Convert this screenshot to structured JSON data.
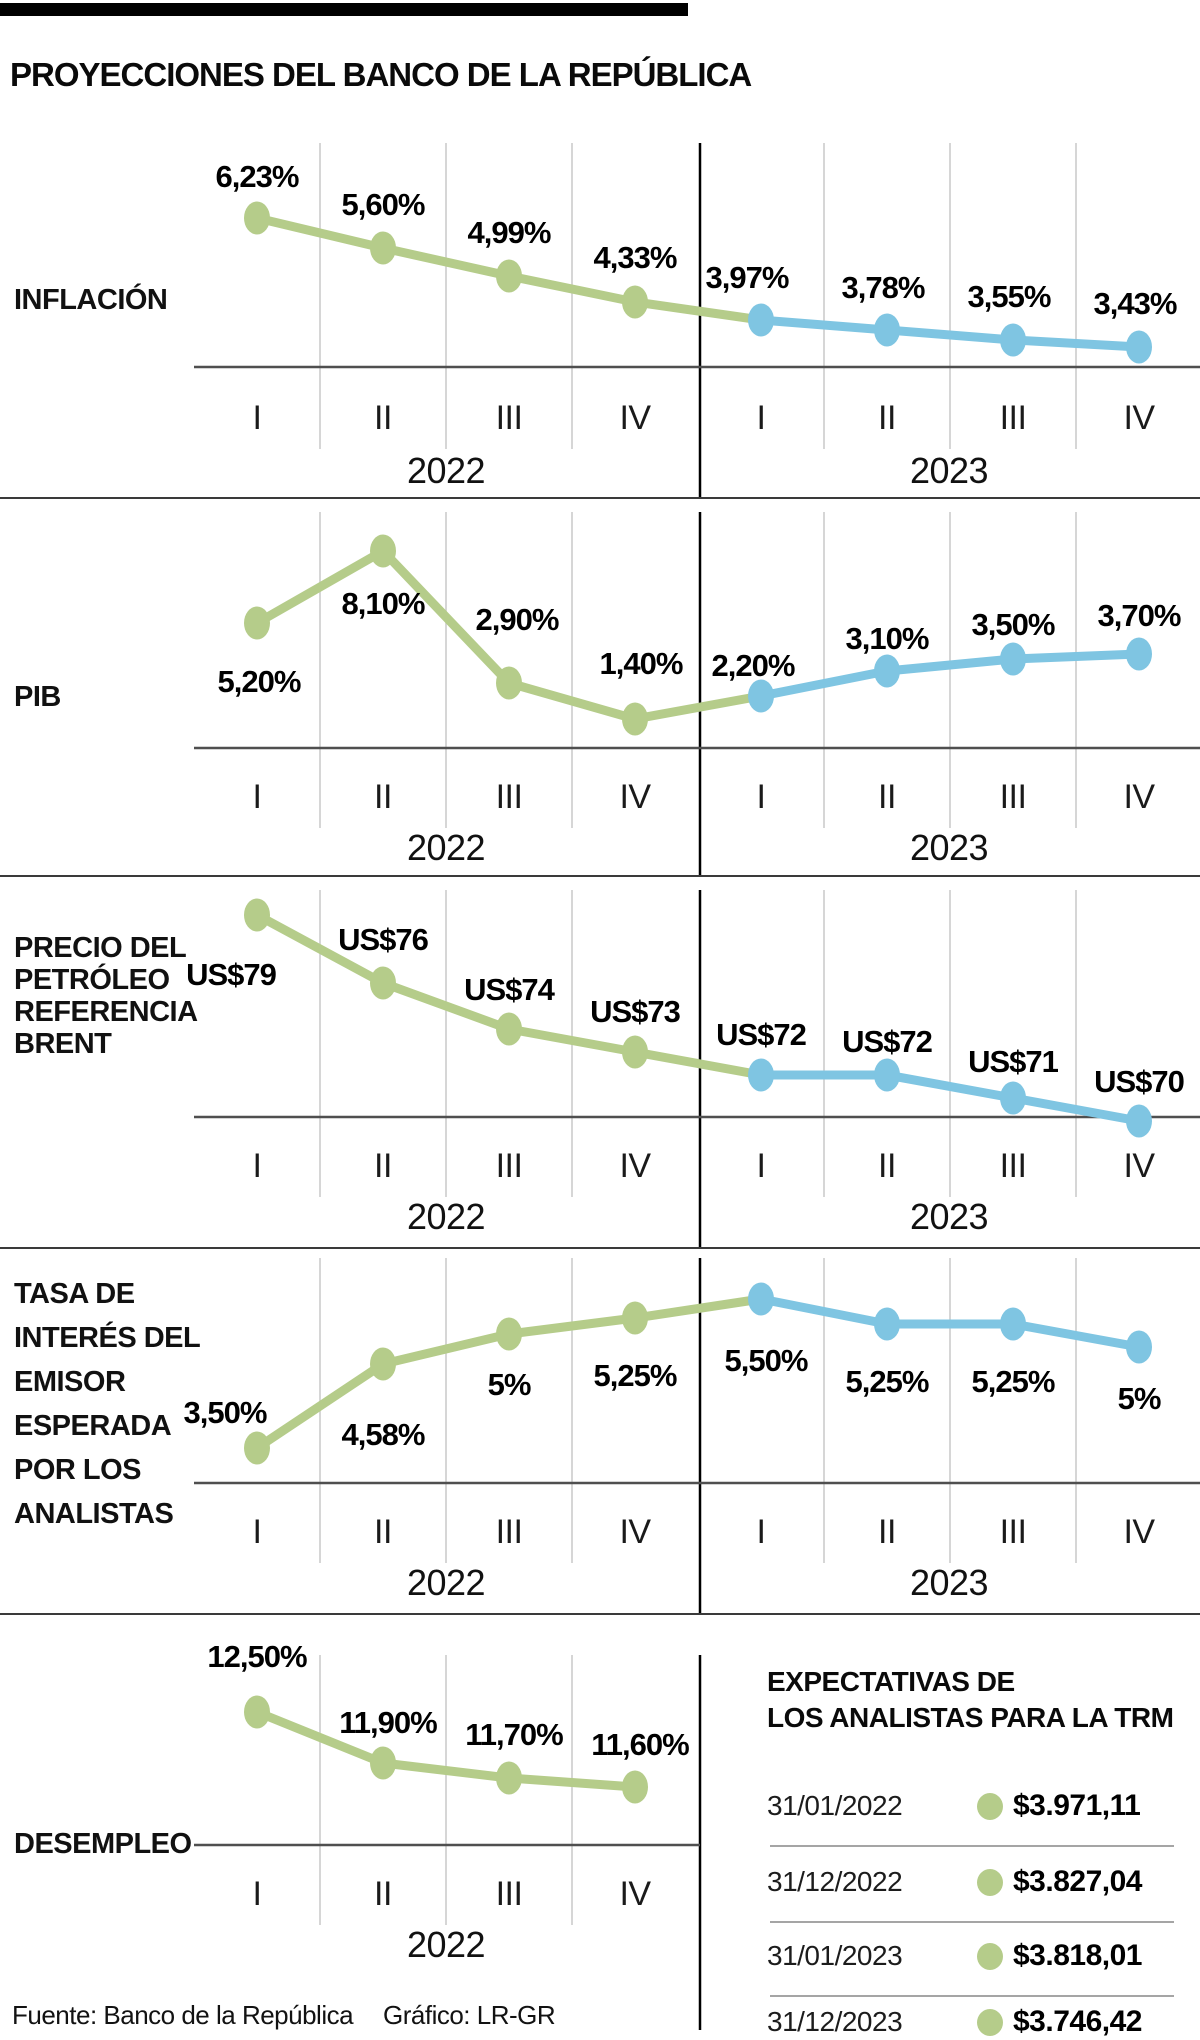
{
  "title": "PROYECCIONES DEL BANCO DE LA REPÚBLICA",
  "colors": {
    "series_2022": "#b5cc8a",
    "series_2023": "#7fc5e2",
    "axis": "#4f4f4f",
    "grid": "#c9c9c9",
    "divider": "#000000",
    "section_rule": "#3a3a3a",
    "trm_rule": "#a5a5a5"
  },
  "chart_data": [
    {
      "type": "line",
      "id": "inflacion",
      "label": "INFLACIÓN",
      "categories": [
        "I 2022",
        "II 2022",
        "III 2022",
        "IV 2022",
        "I 2023",
        "II 2023",
        "III 2023",
        "IV 2023"
      ],
      "quarter_ticks": [
        "I",
        "II",
        "III",
        "IV",
        "I",
        "II",
        "III",
        "IV"
      ],
      "year_groups": [
        "2022",
        "2023"
      ],
      "series": [
        {
          "name": "2022",
          "values": [
            6.23,
            5.6,
            4.99,
            4.33
          ]
        },
        {
          "name": "2023",
          "values": [
            3.97,
            3.78,
            3.55,
            3.43
          ]
        }
      ],
      "point_labels": [
        "6,23%",
        "5,60%",
        "4,99%",
        "4,33%",
        "3,97%",
        "3,78%",
        "3,55%",
        "3,43%"
      ]
    },
    {
      "type": "line",
      "id": "pib",
      "label": "PIB",
      "categories": [
        "I 2022",
        "II 2022",
        "III 2022",
        "IV 2022",
        "I 2023",
        "II 2023",
        "III 2023",
        "IV 2023"
      ],
      "quarter_ticks": [
        "I",
        "II",
        "III",
        "IV",
        "I",
        "II",
        "III",
        "IV"
      ],
      "year_groups": [
        "2022",
        "2023"
      ],
      "series": [
        {
          "name": "2022",
          "values": [
            5.2,
            8.1,
            2.9,
            1.4
          ]
        },
        {
          "name": "2023",
          "values": [
            2.2,
            3.1,
            3.5,
            3.7
          ]
        }
      ],
      "point_labels": [
        "5,20%",
        "8,10%",
        "2,90%",
        "1,40%",
        "2,20%",
        "3,10%",
        "3,50%",
        "3,70%"
      ]
    },
    {
      "type": "line",
      "id": "brent",
      "label": "PRECIO DEL\nPETRÓLEO\nREFERENCIA\nBRENT",
      "categories": [
        "I 2022",
        "II 2022",
        "III 2022",
        "IV 2022",
        "I 2023",
        "II 2023",
        "III 2023",
        "IV 2023"
      ],
      "quarter_ticks": [
        "I",
        "II",
        "III",
        "IV",
        "I",
        "II",
        "III",
        "IV"
      ],
      "year_groups": [
        "2022",
        "2023"
      ],
      "series": [
        {
          "name": "2022",
          "values": [
            79,
            76,
            74,
            73
          ]
        },
        {
          "name": "2023",
          "values": [
            72,
            72,
            71,
            70
          ]
        }
      ],
      "point_labels": [
        "US$79",
        "US$76",
        "US$74",
        "US$73",
        "US$72",
        "US$72",
        "US$71",
        "US$70"
      ]
    },
    {
      "type": "line",
      "id": "tasa",
      "label": "TASA DE\nINTERÉS DEL\nEMISOR\nESPERADA\nPOR LOS\nANALISTAS",
      "categories": [
        "I 2022",
        "II 2022",
        "III 2022",
        "IV 2022",
        "I 2023",
        "II 2023",
        "III 2023",
        "IV 2023"
      ],
      "quarter_ticks": [
        "I",
        "II",
        "III",
        "IV",
        "I",
        "II",
        "III",
        "IV"
      ],
      "year_groups": [
        "2022",
        "2023"
      ],
      "series": [
        {
          "name": "2022",
          "values": [
            3.5,
            4.58,
            5.0,
            5.25
          ]
        },
        {
          "name": "2023",
          "values": [
            5.5,
            5.25,
            5.25,
            5.0
          ]
        }
      ],
      "point_labels": [
        "3,50%",
        "4,58%",
        "5%",
        "5,25%",
        "5,50%",
        "5,25%",
        "5,25%",
        "5%"
      ]
    },
    {
      "type": "line",
      "id": "desempleo",
      "label": "DESEMPLEO",
      "categories": [
        "I 2022",
        "II 2022",
        "III 2022",
        "IV 2022"
      ],
      "quarter_ticks": [
        "I",
        "II",
        "III",
        "IV"
      ],
      "year_groups": [
        "2022"
      ],
      "series": [
        {
          "name": "2022",
          "values": [
            12.5,
            11.9,
            11.7,
            11.6
          ]
        }
      ],
      "point_labels": [
        "12,50%",
        "11,90%",
        "11,70%",
        "11,60%"
      ]
    }
  ],
  "trm": {
    "title": "EXPECTATIVAS DE\nLOS ANALISTAS PARA LA TRM",
    "rows": [
      {
        "date": "31/01/2022",
        "value": "$3.971,11"
      },
      {
        "date": "31/12/2022",
        "value": "$3.827,04"
      },
      {
        "date": "31/01/2023",
        "value": "$3.818,01"
      },
      {
        "date": "31/12/2023",
        "value": "$3.746,42"
      }
    ]
  },
  "footer": {
    "source": "Fuente: Banco de la República",
    "credit": "Gráfico: LR-GR"
  }
}
